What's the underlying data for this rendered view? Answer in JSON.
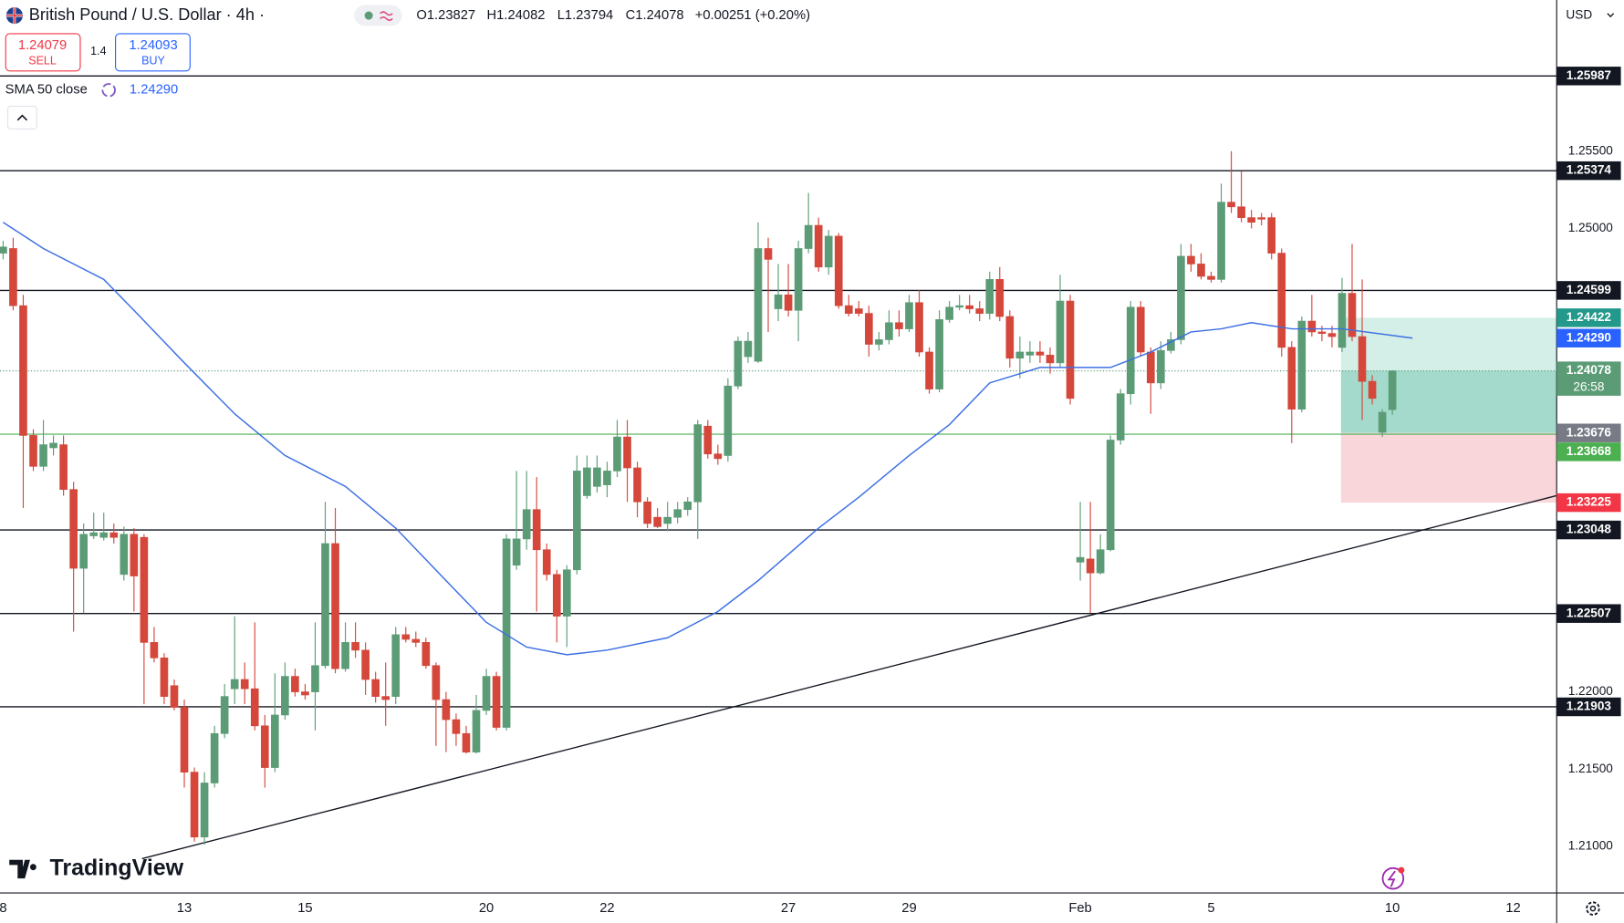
{
  "header": {
    "symbol": "British Pound / U.S. Dollar · 4h ·",
    "quote": [
      "O1.23827",
      "H1.24082",
      "L1.23794",
      "C1.24078",
      "+0.00251 (+0.20%)"
    ]
  },
  "trade": {
    "sell_price": "1.24079",
    "sell": "SELL",
    "spread": "1.4",
    "buy_price": "1.24093",
    "buy": "BUY"
  },
  "ui": {
    "currency": "USD",
    "logo": "TradingView"
  },
  "chart_data": {
    "type": "candlestick",
    "categories": [
      "8",
      null,
      null,
      null,
      null,
      null,
      null,
      null,
      null,
      null,
      null,
      null,
      null,
      null,
      null,
      null,
      null,
      null,
      "13",
      null,
      null,
      null,
      null,
      null,
      null,
      null,
      null,
      null,
      null,
      null,
      "15",
      null,
      null,
      null,
      null,
      null,
      null,
      null,
      null,
      null,
      null,
      null,
      null,
      null,
      null,
      null,
      null,
      null,
      "20",
      null,
      null,
      null,
      null,
      null,
      null,
      null,
      null,
      null,
      null,
      null,
      "22",
      null,
      null,
      null,
      null,
      null,
      null,
      null,
      null,
      null,
      null,
      null,
      null,
      null,
      null,
      null,
      null,
      null,
      "27",
      null,
      null,
      null,
      null,
      null,
      null,
      null,
      null,
      null,
      null,
      null,
      "29",
      null,
      null,
      null,
      null,
      null,
      null,
      null,
      null,
      null,
      null,
      null,
      null,
      null,
      null,
      null,
      null,
      "Feb",
      null,
      null,
      null,
      null,
      null,
      null,
      null,
      null,
      null,
      null,
      null,
      null,
      "5",
      null,
      null,
      null,
      null,
      null,
      null,
      null,
      null,
      null,
      null,
      null,
      null,
      null,
      null,
      null,
      null,
      null,
      "10",
      null,
      null,
      null,
      null,
      null,
      null,
      null,
      null,
      null,
      null,
      null,
      "12",
      null,
      null,
      null,
      null
    ],
    "ohlc": [
      [
        1.2484,
        1.2492,
        1.248,
        1.2488
      ],
      [
        1.2487,
        1.2494,
        1.2447,
        1.245
      ],
      [
        1.245,
        1.2457,
        1.2319,
        1.2366
      ],
      [
        1.2366,
        1.237,
        1.2343,
        1.2346
      ],
      [
        1.2346,
        1.2376,
        1.2343,
        1.236
      ],
      [
        1.2358,
        1.2366,
        1.2353,
        1.2361
      ],
      [
        1.236,
        1.2366,
        1.2327,
        1.2331
      ],
      [
        1.2331,
        1.2336,
        1.2239,
        1.228
      ],
      [
        1.228,
        1.2309,
        1.2251,
        1.2302
      ],
      [
        1.2301,
        1.2316,
        1.2299,
        1.2303
      ],
      [
        1.23,
        1.2316,
        1.2298,
        1.2303
      ],
      [
        1.2303,
        1.2309,
        1.2296,
        1.23
      ],
      [
        1.2276,
        1.2307,
        1.2272,
        1.2302
      ],
      [
        1.2302,
        1.2306,
        1.2252,
        1.2275
      ],
      [
        1.23,
        1.2302,
        1.2192,
        1.2232
      ],
      [
        1.2232,
        1.2242,
        1.2219,
        1.2222
      ],
      [
        1.2222,
        1.2225,
        1.2192,
        1.2197
      ],
      [
        1.2204,
        1.2208,
        1.2188,
        1.219
      ],
      [
        1.219,
        1.2195,
        1.2138,
        1.2148
      ],
      [
        1.2148,
        1.2151,
        1.2103,
        1.2106
      ],
      [
        1.2106,
        1.2148,
        1.2101,
        1.2141
      ],
      [
        1.2141,
        1.2178,
        1.2138,
        1.2173
      ],
      [
        1.2173,
        1.2205,
        1.217,
        1.2197
      ],
      [
        1.2202,
        1.2249,
        1.2192,
        1.2208
      ],
      [
        1.2208,
        1.2219,
        1.2192,
        1.2202
      ],
      [
        1.2202,
        1.2245,
        1.2175,
        1.2178
      ],
      [
        1.2178,
        1.2185,
        1.2138,
        1.2151
      ],
      [
        1.2151,
        1.2212,
        1.2148,
        1.2185
      ],
      [
        1.2185,
        1.2219,
        1.2182,
        1.221
      ],
      [
        1.221,
        1.2215,
        1.2197,
        1.22
      ],
      [
        1.22,
        1.2205,
        1.2195,
        1.2198
      ],
      [
        1.22,
        1.2245,
        1.2175,
        1.2217
      ],
      [
        1.2217,
        1.2323,
        1.2215,
        1.2296
      ],
      [
        1.2296,
        1.2319,
        1.2212,
        1.2215
      ],
      [
        1.2215,
        1.2245,
        1.2213,
        1.2232
      ],
      [
        1.2232,
        1.2245,
        1.2222,
        1.2227
      ],
      [
        1.2227,
        1.2232,
        1.2198,
        1.2208
      ],
      [
        1.2208,
        1.2213,
        1.2193,
        1.2197
      ],
      [
        1.2197,
        1.2219,
        1.2178,
        1.2195
      ],
      [
        1.2197,
        1.2242,
        1.2192,
        1.2237
      ],
      [
        1.2237,
        1.2242,
        1.2232,
        1.2234
      ],
      [
        1.2234,
        1.2239,
        1.2229,
        1.2232
      ],
      [
        1.2232,
        1.2235,
        1.2215,
        1.2217
      ],
      [
        1.2217,
        1.2219,
        1.2165,
        1.2195
      ],
      [
        1.2195,
        1.22,
        1.2161,
        1.2182
      ],
      [
        1.2182,
        1.2186,
        1.2165,
        1.2173
      ],
      [
        1.2173,
        1.2178,
        1.216,
        1.2161
      ],
      [
        1.2161,
        1.2198,
        1.216,
        1.2188
      ],
      [
        1.2188,
        1.2215,
        1.2185,
        1.221
      ],
      [
        1.221,
        1.2213,
        1.2175,
        1.2177
      ],
      [
        1.2177,
        1.2302,
        1.2175,
        1.2299
      ],
      [
        1.2282,
        1.2343,
        1.2279,
        1.2299
      ],
      [
        1.2299,
        1.2343,
        1.2292,
        1.2318
      ],
      [
        1.2318,
        1.2339,
        1.2252,
        1.2292
      ],
      [
        1.2292,
        1.2296,
        1.2272,
        1.2276
      ],
      [
        1.2276,
        1.2279,
        1.2232,
        1.2249
      ],
      [
        1.2249,
        1.2282,
        1.2229,
        1.2279
      ],
      [
        1.2279,
        1.2353,
        1.2276,
        1.2343
      ],
      [
        1.2327,
        1.2353,
        1.2325,
        1.2345
      ],
      [
        1.2333,
        1.2353,
        1.2329,
        1.2345
      ],
      [
        1.2334,
        1.2349,
        1.2326,
        1.2343
      ],
      [
        1.2343,
        1.2376,
        1.2339,
        1.2365
      ],
      [
        1.2365,
        1.2376,
        1.2323,
        1.2345
      ],
      [
        1.2345,
        1.2349,
        1.2313,
        1.2323
      ],
      [
        1.2323,
        1.2326,
        1.2306,
        1.2309
      ],
      [
        1.2313,
        1.2319,
        1.2306,
        1.2307
      ],
      [
        1.2309,
        1.2323,
        1.2304,
        1.2313
      ],
      [
        1.2313,
        1.2323,
        1.2309,
        1.2318
      ],
      [
        1.2318,
        1.2326,
        1.2314,
        1.2323
      ],
      [
        1.2323,
        1.2376,
        1.2299,
        1.2373
      ],
      [
        1.2372,
        1.2376,
        1.2351,
        1.2354
      ],
      [
        1.2354,
        1.236,
        1.2347,
        1.2351
      ],
      [
        1.2353,
        1.2403,
        1.2349,
        1.2398
      ],
      [
        1.2398,
        1.243,
        1.2396,
        1.2427
      ],
      [
        1.2417,
        1.2433,
        1.2413,
        1.2427
      ],
      [
        1.2414,
        1.2504,
        1.2413,
        1.2487
      ],
      [
        1.2487,
        1.2494,
        1.2433,
        1.248
      ],
      [
        1.2448,
        1.2477,
        1.244,
        1.2457
      ],
      [
        1.2457,
        1.2477,
        1.2443,
        1.2447
      ],
      [
        1.2447,
        1.2492,
        1.2427,
        1.2487
      ],
      [
        1.2487,
        1.2523,
        1.2484,
        1.2502
      ],
      [
        1.2502,
        1.2507,
        1.2472,
        1.2475
      ],
      [
        1.2475,
        1.2499,
        1.247,
        1.2495
      ],
      [
        1.2495,
        1.2497,
        1.2448,
        1.245
      ],
      [
        1.245,
        1.2457,
        1.2443,
        1.2445
      ],
      [
        1.2448,
        1.2453,
        1.2443,
        1.2445
      ],
      [
        1.2445,
        1.245,
        1.2417,
        1.2425
      ],
      [
        1.2425,
        1.2433,
        1.2421,
        1.2428
      ],
      [
        1.2428,
        1.2447,
        1.2425,
        1.2439
      ],
      [
        1.2439,
        1.2447,
        1.243,
        1.2435
      ],
      [
        1.2435,
        1.2457,
        1.2433,
        1.2452
      ],
      [
        1.2452,
        1.246,
        1.2417,
        1.242
      ],
      [
        1.242,
        1.2423,
        1.2393,
        1.2396
      ],
      [
        1.2396,
        1.2447,
        1.2394,
        1.2441
      ],
      [
        1.2441,
        1.2453,
        1.2439,
        1.2449
      ],
      [
        1.2449,
        1.2457,
        1.2447,
        1.245
      ],
      [
        1.245,
        1.2457,
        1.2445,
        1.2448
      ],
      [
        1.2448,
        1.2453,
        1.244,
        1.2445
      ],
      [
        1.2445,
        1.2472,
        1.2441,
        1.2467
      ],
      [
        1.2467,
        1.2475,
        1.244,
        1.2443
      ],
      [
        1.2443,
        1.2447,
        1.241,
        1.2416
      ],
      [
        1.2416,
        1.243,
        1.2403,
        1.242
      ],
      [
        1.2418,
        1.2427,
        1.2413,
        1.242
      ],
      [
        1.242,
        1.2427,
        1.2413,
        1.2418
      ],
      [
        1.2418,
        1.2423,
        1.2406,
        1.2413
      ],
      [
        1.2413,
        1.247,
        1.241,
        1.2453
      ],
      [
        1.2453,
        1.2457,
        1.2386,
        1.239
      ],
      [
        1.2284,
        1.2323,
        1.2272,
        1.2287
      ],
      [
        1.2286,
        1.2323,
        1.2251,
        1.2277
      ],
      [
        1.2277,
        1.2302,
        1.2276,
        1.2292
      ],
      [
        1.2292,
        1.2366,
        1.2291,
        1.2363
      ],
      [
        1.2363,
        1.2396,
        1.236,
        1.2393
      ],
      [
        1.2393,
        1.2453,
        1.2386,
        1.2449
      ],
      [
        1.2449,
        1.2453,
        1.2417,
        1.242
      ],
      [
        1.242,
        1.2423,
        1.238,
        1.24
      ],
      [
        1.24,
        1.2427,
        1.2396,
        1.2421
      ],
      [
        1.2421,
        1.2433,
        1.2419,
        1.2428
      ],
      [
        1.2428,
        1.249,
        1.2425,
        1.2482
      ],
      [
        1.2482,
        1.249,
        1.2472,
        1.2477
      ],
      [
        1.2477,
        1.2484,
        1.2467,
        1.2469
      ],
      [
        1.2469,
        1.2472,
        1.2465,
        1.2467
      ],
      [
        1.2467,
        1.2529,
        1.2465,
        1.2517
      ],
      [
        1.2517,
        1.255,
        1.251,
        1.2514
      ],
      [
        1.2514,
        1.2537,
        1.2504,
        1.2507
      ],
      [
        1.2507,
        1.2512,
        1.25,
        1.2504
      ],
      [
        1.2507,
        1.251,
        1.2502,
        1.2506
      ],
      [
        1.2507,
        1.251,
        1.248,
        1.2484
      ],
      [
        1.2484,
        1.2487,
        1.2417,
        1.2423
      ],
      [
        1.2423,
        1.2427,
        1.2361,
        1.2383
      ],
      [
        1.2383,
        1.2443,
        1.2381,
        1.244
      ],
      [
        1.244,
        1.2457,
        1.243,
        1.2433
      ],
      [
        1.2433,
        1.2437,
        1.2427,
        1.2432
      ],
      [
        1.2432,
        1.2437,
        1.2423,
        1.243
      ],
      [
        1.2423,
        1.2468,
        1.242,
        1.2458
      ],
      [
        1.2458,
        1.249,
        1.2427,
        1.243
      ],
      [
        1.243,
        1.2467,
        1.2376,
        1.2401
      ],
      [
        1.2401,
        1.2405,
        1.2386,
        1.239
      ],
      [
        1.2368,
        1.2383,
        1.2365,
        1.2381
      ],
      [
        1.23827,
        1.24082,
        1.23794,
        1.24078
      ],
      null,
      null,
      null,
      null,
      null,
      null,
      null,
      null,
      null,
      null,
      null,
      null,
      null,
      null,
      null,
      null
    ],
    "up_color": "#5b9c76",
    "down_color": "#d5463b",
    "ylim": [
      1.20698,
      1.26479
    ],
    "yticks": [
      {
        "value": 1.21,
        "label": "1.21000"
      },
      {
        "value": 1.215,
        "label": "1.21500"
      },
      {
        "value": 1.22,
        "label": "1.22000"
      },
      {
        "value": 1.25,
        "label": "1.25000"
      },
      {
        "value": 1.255,
        "label": "1.25500"
      }
    ],
    "grid": false,
    "sma": {
      "name": "SMA 50 close",
      "color": "#3d6fe3",
      "x": [
        0,
        4,
        10,
        13,
        18,
        23,
        28,
        34,
        39,
        44,
        48,
        52,
        56,
        60,
        66,
        71,
        75,
        81,
        85,
        90,
        94,
        98,
        103,
        107,
        110,
        114,
        118,
        121,
        124,
        128,
        133,
        140
      ],
      "values": [
        1.2504,
        1.2487,
        1.2467,
        1.2447,
        1.2413,
        1.238,
        1.2353,
        1.2333,
        1.2306,
        1.2272,
        1.2245,
        1.2229,
        1.2224,
        1.2227,
        1.2235,
        1.2252,
        1.2272,
        1.2306,
        1.2326,
        1.2353,
        1.2373,
        1.24,
        1.241,
        1.241,
        1.241,
        1.242,
        1.2433,
        1.2435,
        1.2439,
        1.2435,
        1.2435,
        1.2429
      ]
    },
    "sma_last": {
      "value": 1.2429,
      "label": "1.24290"
    },
    "trendline": {
      "x": [
        13.8,
        154.3
      ],
      "values": [
        1.2092,
        1.2327
      ]
    },
    "levels": [
      1.25987,
      1.25374,
      1.24599,
      1.23048,
      1.22507,
      1.21903
    ],
    "position": {
      "start": 132.9,
      "target": 1.24422,
      "entry": 1.23676,
      "stop": 1.23225
    },
    "entry_line": 1.23668,
    "last_price": 1.24078,
    "countdown": "26:58"
  }
}
